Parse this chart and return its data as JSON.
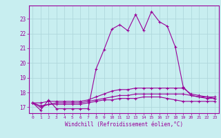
{
  "xlabel": "Windchill (Refroidissement éolien,°C)",
  "bg_color": "#c8eef0",
  "grid_color": "#b0d8dc",
  "line_color": "#990099",
  "x_hours": [
    0,
    1,
    2,
    3,
    4,
    5,
    6,
    7,
    8,
    9,
    10,
    11,
    12,
    13,
    14,
    15,
    16,
    17,
    18,
    19,
    20,
    21,
    22,
    23
  ],
  "series1": [
    17.3,
    16.8,
    17.5,
    16.9,
    16.9,
    16.9,
    16.9,
    16.9,
    19.6,
    20.9,
    22.3,
    22.6,
    22.2,
    23.3,
    22.2,
    23.5,
    22.8,
    22.5,
    21.1,
    18.4,
    17.8,
    17.7,
    17.6,
    17.6
  ],
  "series2": [
    17.3,
    17.3,
    17.4,
    17.4,
    17.4,
    17.4,
    17.4,
    17.5,
    17.7,
    17.9,
    18.1,
    18.2,
    18.2,
    18.3,
    18.3,
    18.3,
    18.3,
    18.3,
    18.3,
    18.3,
    17.9,
    17.8,
    17.7,
    17.7
  ],
  "series3": [
    17.3,
    17.1,
    17.2,
    17.3,
    17.3,
    17.3,
    17.3,
    17.4,
    17.5,
    17.6,
    17.7,
    17.8,
    17.8,
    17.9,
    17.9,
    17.9,
    17.9,
    17.9,
    17.9,
    17.9,
    17.8,
    17.7,
    17.7,
    17.6
  ],
  "series4": [
    17.3,
    17.0,
    17.2,
    17.2,
    17.2,
    17.2,
    17.2,
    17.3,
    17.4,
    17.5,
    17.5,
    17.6,
    17.6,
    17.6,
    17.7,
    17.7,
    17.7,
    17.6,
    17.5,
    17.4,
    17.4,
    17.4,
    17.4,
    17.4
  ],
  "ylim": [
    16.6,
    23.9
  ],
  "yticks": [
    17,
    18,
    19,
    20,
    21,
    22,
    23
  ],
  "xticks": [
    0,
    1,
    2,
    3,
    4,
    5,
    6,
    7,
    8,
    9,
    10,
    11,
    12,
    13,
    14,
    15,
    16,
    17,
    18,
    19,
    20,
    21,
    22,
    23
  ]
}
